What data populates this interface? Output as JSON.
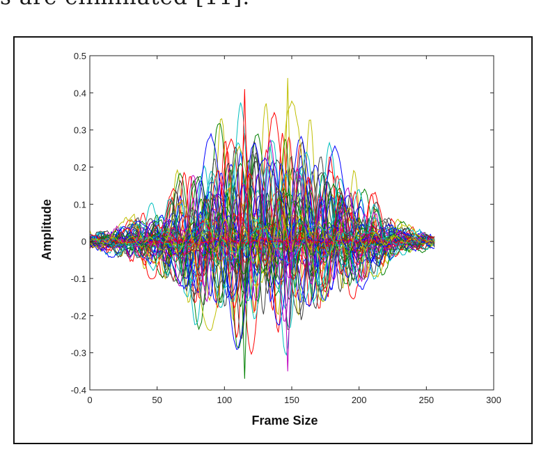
{
  "caption_fragment": "s are eliminated [11].",
  "chart_data": {
    "type": "line",
    "title": "",
    "xlabel": "Frame Size",
    "ylabel": "Amplitude",
    "xlim": [
      0,
      300
    ],
    "ylim": [
      -0.4,
      0.5
    ],
    "x_ticks": [
      0,
      50,
      100,
      150,
      200,
      250,
      300
    ],
    "y_ticks": [
      -0.4,
      -0.3,
      -0.2,
      -0.1,
      0,
      0.1,
      0.2,
      0.3,
      0.4,
      0.5
    ],
    "x_tick_labels": [
      "0",
      "50",
      "100",
      "150",
      "200",
      "250",
      "300"
    ],
    "y_tick_labels": [
      "-0.4",
      "-0.3",
      "-0.2",
      "-0.1",
      "0",
      "0.1",
      "0.2",
      "0.3",
      "0.4",
      "0.5"
    ],
    "grid": false,
    "legend": "none",
    "frame_length": 256,
    "series_colors": [
      "#0000ff",
      "#008000",
      "#ff0000",
      "#00bfbf",
      "#bf00bf",
      "#bfbf00",
      "#404040"
    ],
    "envelope": {
      "x": [
        0,
        25,
        50,
        75,
        100,
        115,
        125,
        135,
        147,
        160,
        175,
        190,
        210,
        230,
        256
      ],
      "upper": [
        0.03,
        0.06,
        0.12,
        0.25,
        0.36,
        0.41,
        0.38,
        0.39,
        0.44,
        0.35,
        0.32,
        0.22,
        0.15,
        0.06,
        0.02
      ],
      "lower": [
        -0.02,
        -0.06,
        -0.12,
        -0.24,
        -0.27,
        -0.37,
        -0.28,
        -0.27,
        -0.35,
        -0.28,
        -0.23,
        -0.19,
        -0.13,
        -0.05,
        -0.02
      ]
    },
    "peak_points": [
      {
        "x": 115,
        "y": 0.41
      },
      {
        "x": 147,
        "y": 0.44
      },
      {
        "x": 115,
        "y": -0.37
      },
      {
        "x": 147,
        "y": -0.35
      }
    ]
  }
}
